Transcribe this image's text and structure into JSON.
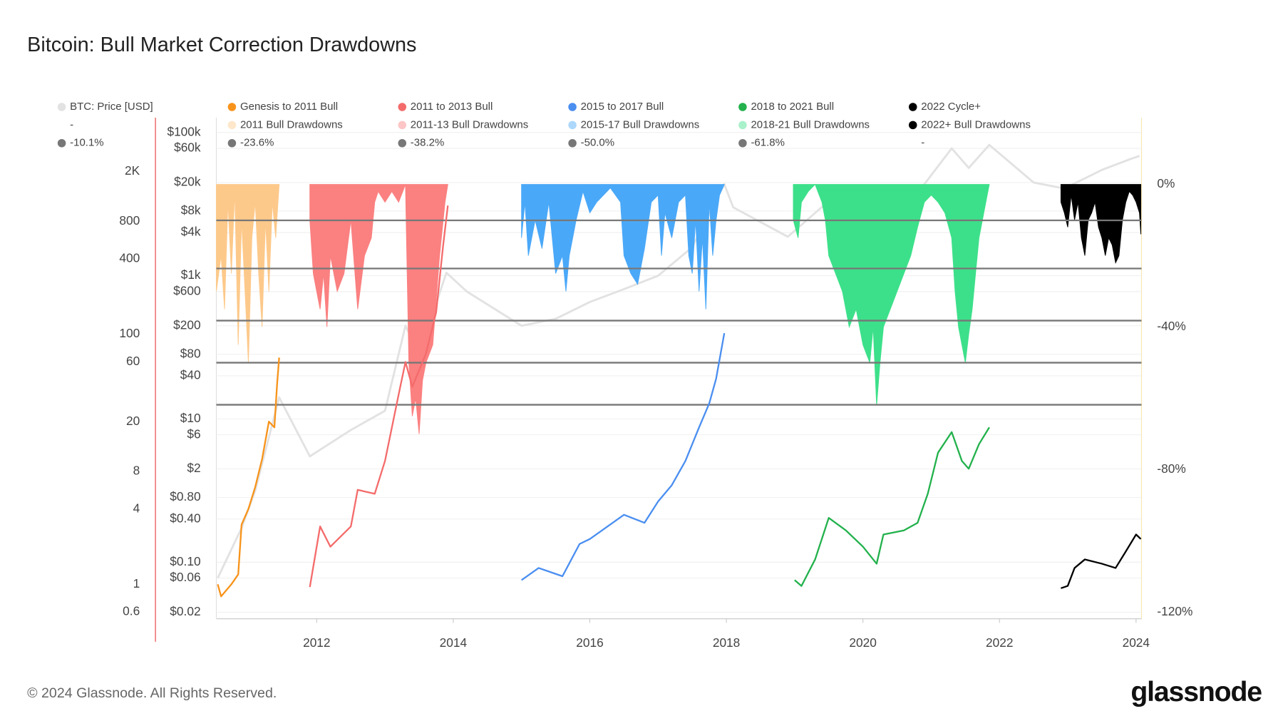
{
  "chart_data": {
    "type": "line",
    "title": "Bitcoin: Bull Market Correction Drawdowns",
    "footer": "© 2024 Glassnode. All Rights Reserved.",
    "brand": "glassnode",
    "xlim": [
      2010.53,
      2024.08
    ],
    "xticks": [
      2012,
      2014,
      2016,
      2018,
      2020,
      2022,
      2024
    ],
    "ylim": [
      0.53,
      5400
    ],
    "ylog": true,
    "yticks": [
      0.6,
      1,
      4,
      8,
      20,
      60,
      100,
      400,
      800,
      {
        "value": 2000,
        "label": "2K"
      }
    ],
    "y3lim": [
      0.0162,
      161000
    ],
    "y3log": true,
    "y3ticks": [
      {
        "value": 100000,
        "label": "$100k"
      },
      {
        "value": 60000,
        "label": "$60k"
      },
      {
        "value": 20000,
        "label": "$20k"
      },
      {
        "value": 8000,
        "label": "$8k"
      },
      {
        "value": 4000,
        "label": "$4k"
      },
      {
        "value": 1000,
        "label": "$1k"
      },
      {
        "value": 600,
        "label": "$600"
      },
      {
        "value": 200,
        "label": "$200"
      },
      {
        "value": 80,
        "label": "$80"
      },
      {
        "value": 40,
        "label": "$40"
      },
      {
        "value": 10,
        "label": "$10"
      },
      {
        "value": 6,
        "label": "$6"
      },
      {
        "value": 2,
        "label": "$2"
      },
      {
        "value": 0.8,
        "label": "$0.80"
      },
      {
        "value": 0.4,
        "label": "$0.40"
      },
      {
        "value": 0.1,
        "label": "$0.10"
      },
      {
        "value": 0.06,
        "label": "$0.06"
      },
      {
        "value": 0.02,
        "label": "$0.02"
      }
    ],
    "y2lim": [
      -121.8,
      18.7
    ],
    "y2ticks": [
      {
        "value": 0,
        "label": "0%"
      },
      {
        "value": -40,
        "label": "-40%"
      },
      {
        "value": -80,
        "label": "-80%"
      },
      {
        "value": -120,
        "label": "-120%"
      }
    ],
    "grid": true,
    "series": [
      {
        "name": "BTC: Price [USD]",
        "color": "#e2e2e2",
        "axis": "y3",
        "type": "line",
        "x": [
          2010.55,
          2010.9,
          2011.1,
          2011.45,
          2011.9,
          2012.5,
          2013.0,
          2013.3,
          2013.5,
          2013.9,
          2014.2,
          2015.0,
          2015.5,
          2016.0,
          2016.5,
          2017.0,
          2017.5,
          2017.97,
          2018.1,
          2018.9,
          2019.5,
          2020.2,
          2020.9,
          2021.3,
          2021.55,
          2021.85,
          2022.5,
          2022.95,
          2023.5,
          2023.9,
          2024.05
        ],
        "values": [
          0.06,
          0.3,
          1,
          20,
          3,
          7,
          13,
          200,
          80,
          1100,
          600,
          200,
          250,
          430,
          650,
          1000,
          2500,
          19000,
          9000,
          3500,
          11000,
          5000,
          19000,
          60000,
          32000,
          67000,
          20000,
          16500,
          30000,
          42000,
          47000
        ]
      },
      {
        "name": "Genesis to 2011 Bull",
        "color": "#f7931a",
        "axis": "y",
        "type": "line",
        "x": [
          2010.55,
          2010.6,
          2010.75,
          2010.85,
          2010.9,
          2011.0,
          2011.1,
          2011.2,
          2011.3,
          2011.38,
          2011.42,
          2011.45
        ],
        "values": [
          1,
          0.8,
          1.0,
          1.2,
          3,
          4,
          6,
          10,
          20,
          18,
          40,
          65
        ]
      },
      {
        "name": "2011 to 2013 Bull",
        "color": "#f46b6b",
        "axis": "y",
        "type": "line",
        "x": [
          2011.9,
          2012.05,
          2012.2,
          2012.5,
          2012.6,
          2012.85,
          2013.0,
          2013.2,
          2013.3,
          2013.4,
          2013.6,
          2013.75,
          2013.85,
          2013.92
        ],
        "values": [
          0.95,
          2.9,
          2,
          2.9,
          5.7,
          5.3,
          9.7,
          33,
          60,
          38,
          70,
          150,
          500,
          1070
        ]
      },
      {
        "name": "2015 to 2017 Bull",
        "color": "#4a8ef0",
        "axis": "y",
        "type": "line",
        "x": [
          2015.0,
          2015.25,
          2015.6,
          2015.85,
          2016.0,
          2016.5,
          2016.8,
          2017.0,
          2017.2,
          2017.4,
          2017.6,
          2017.75,
          2017.85,
          2017.97
        ],
        "values": [
          1.08,
          1.35,
          1.16,
          2.1,
          2.3,
          3.6,
          3.1,
          4.6,
          6.2,
          9.7,
          18,
          28,
          44,
          102
        ]
      },
      {
        "name": "2018 to 2021 Bull",
        "color": "#22b14c",
        "axis": "y",
        "type": "line",
        "x": [
          2019.0,
          2019.1,
          2019.3,
          2019.5,
          2019.75,
          2020.0,
          2020.2,
          2020.3,
          2020.6,
          2020.8,
          2020.95,
          2021.1,
          2021.3,
          2021.45,
          2021.55,
          2021.7,
          2021.85
        ],
        "values": [
          1.08,
          0.97,
          1.58,
          3.4,
          2.7,
          2,
          1.46,
          2.5,
          2.7,
          3.1,
          5.3,
          11.3,
          16.5,
          9.7,
          8.4,
          13.2,
          18
        ]
      },
      {
        "name": "2022 Cycle+",
        "color": "#000000",
        "axis": "y",
        "type": "line",
        "x": [
          2022.9,
          2023.0,
          2023.1,
          2023.25,
          2023.5,
          2023.7,
          2023.85,
          2024.0,
          2024.07
        ],
        "values": [
          0.93,
          0.97,
          1.35,
          1.58,
          1.46,
          1.35,
          1.83,
          2.5,
          2.3
        ]
      },
      {
        "name": "2011 Bull Drawdowns",
        "color": "#fdc98a",
        "axis": "y2",
        "type": "area",
        "x": [
          2010.53,
          2010.6,
          2010.65,
          2010.7,
          2010.75,
          2010.8,
          2010.85,
          2010.9,
          2010.95,
          2011.0,
          2011.05,
          2011.1,
          2011.15,
          2011.2,
          2011.25,
          2011.3,
          2011.35,
          2011.4,
          2011.45
        ],
        "values": [
          -30,
          -20,
          -35,
          -5,
          -25,
          -2,
          -45,
          -10,
          -30,
          -50,
          -15,
          -5,
          -25,
          -40,
          -10,
          -30,
          -5,
          -15,
          0
        ]
      },
      {
        "name": "2011-13 Bull Drawdowns",
        "color": "#fb8080",
        "axis": "y2",
        "type": "area",
        "x": [
          2011.9,
          2011.95,
          2012.0,
          2012.05,
          2012.1,
          2012.15,
          2012.2,
          2012.3,
          2012.4,
          2012.5,
          2012.6,
          2012.7,
          2012.8,
          2012.85,
          2012.9,
          2013.0,
          2013.1,
          2013.2,
          2013.3,
          2013.35,
          2013.4,
          2013.45,
          2013.5,
          2013.55,
          2013.6,
          2013.7,
          2013.8,
          2013.88,
          2013.92
        ],
        "values": [
          -10,
          -25,
          -30,
          -35,
          -25,
          -40,
          -20,
          -30,
          -25,
          -10,
          -35,
          -20,
          -15,
          -5,
          -2,
          -5,
          -2,
          -5,
          0,
          -50,
          -65,
          -60,
          -70,
          -55,
          -50,
          -45,
          -20,
          -5,
          0
        ]
      },
      {
        "name": "2015-17 Bull Drawdowns",
        "color": "#4aa8f8",
        "axis": "y2",
        "type": "area",
        "x": [
          2015.0,
          2015.05,
          2015.1,
          2015.2,
          2015.3,
          2015.4,
          2015.5,
          2015.6,
          2015.65,
          2015.7,
          2015.8,
          2015.9,
          2016.0,
          2016.1,
          2016.2,
          2016.3,
          2016.45,
          2016.5,
          2016.6,
          2016.7,
          2016.8,
          2016.9,
          2017.0,
          2017.05,
          2017.1,
          2017.2,
          2017.3,
          2017.4,
          2017.45,
          2017.5,
          2017.55,
          2017.6,
          2017.65,
          2017.7,
          2017.75,
          2017.8,
          2017.85,
          2017.9,
          2017.97
        ],
        "values": [
          -15,
          -5,
          -20,
          -10,
          -18,
          -5,
          -25,
          -20,
          -30,
          -20,
          -10,
          -2,
          -8,
          -5,
          -3,
          -1,
          -5,
          -20,
          -25,
          -28,
          -18,
          -5,
          -3,
          -20,
          -8,
          -15,
          -5,
          -3,
          -20,
          -25,
          -10,
          -30,
          -15,
          -35,
          -5,
          -20,
          -10,
          -3,
          0
        ]
      },
      {
        "name": "2018-21 Bull Drawdowns",
        "color": "#3de08a",
        "axis": "y2",
        "type": "area",
        "x": [
          2018.98,
          2019.05,
          2019.1,
          2019.2,
          2019.3,
          2019.4,
          2019.45,
          2019.5,
          2019.6,
          2019.7,
          2019.8,
          2019.9,
          2020.0,
          2020.1,
          2020.15,
          2020.2,
          2020.25,
          2020.3,
          2020.4,
          2020.5,
          2020.6,
          2020.7,
          2020.8,
          2020.9,
          2021.0,
          2021.1,
          2021.2,
          2021.3,
          2021.35,
          2021.4,
          2021.45,
          2021.5,
          2021.55,
          2021.6,
          2021.65,
          2021.7,
          2021.8,
          2021.85
        ],
        "values": [
          -10,
          -15,
          -5,
          -2,
          0,
          -5,
          -10,
          -20,
          -25,
          -30,
          -40,
          -35,
          -45,
          -50,
          -40,
          -62,
          -50,
          -40,
          -35,
          -30,
          -25,
          -20,
          -12,
          -5,
          -3,
          -5,
          -8,
          -15,
          -30,
          -40,
          -45,
          -50,
          -42,
          -35,
          -25,
          -15,
          -5,
          0
        ]
      },
      {
        "name": "2022+ Bull Drawdowns",
        "color": "#000000",
        "axis": "y2",
        "type": "area",
        "x": [
          2022.9,
          2022.95,
          2023.0,
          2023.05,
          2023.1,
          2023.15,
          2023.2,
          2023.25,
          2023.3,
          2023.35,
          2023.4,
          2023.45,
          2023.5,
          2023.55,
          2023.6,
          2023.65,
          2023.7,
          2023.75,
          2023.8,
          2023.85,
          2023.9,
          2023.95,
          2024.0,
          2024.05,
          2024.07
        ],
        "values": [
          -5,
          -8,
          -12,
          -3,
          -10,
          -5,
          -15,
          -20,
          -10,
          -8,
          -5,
          -12,
          -15,
          -20,
          -15,
          -17,
          -22,
          -20,
          -10,
          -5,
          -2,
          -3,
          -5,
          -8,
          -14
        ]
      }
    ],
    "hlines": [
      {
        "name": "-10.1%",
        "value": -10.1,
        "color": "#777777"
      },
      {
        "name": "-23.6%",
        "value": -23.6,
        "color": "#777777"
      },
      {
        "name": "-38.2%",
        "value": -38.2,
        "color": "#777777"
      },
      {
        "name": "-50.0%",
        "value": -50.0,
        "color": "#777777"
      },
      {
        "name": "-61.8%",
        "value": -61.8,
        "color": "#777777"
      }
    ],
    "legend_placeholders": [
      "-",
      "-"
    ]
  }
}
